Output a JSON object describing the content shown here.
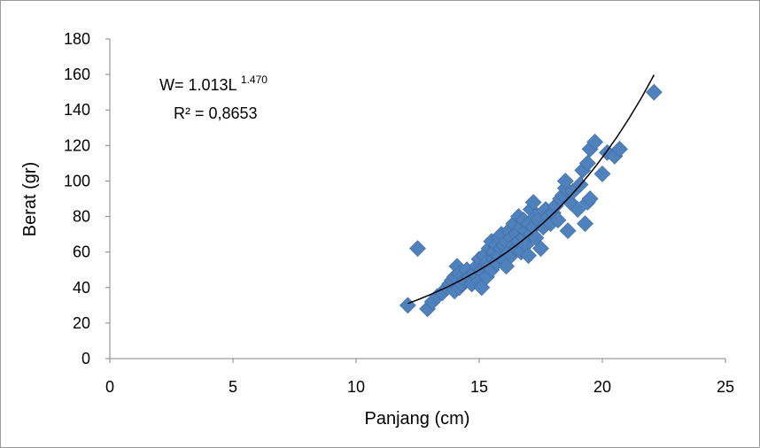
{
  "chart_data": {
    "type": "scatter",
    "title": "",
    "xlabel": "Panjang (cm)",
    "ylabel": "Berat (gr)",
    "xlim": [
      0,
      25
    ],
    "ylim": [
      0,
      180
    ],
    "x_ticks": [
      "0",
      "5",
      "10",
      "15",
      "20",
      "25"
    ],
    "y_ticks": [
      "0",
      "20",
      "40",
      "60",
      "80",
      "100",
      "120",
      "140",
      "160",
      "180"
    ],
    "grid": false,
    "legend": "none",
    "marker": "diamond",
    "marker_color": "#4f81bd",
    "trendline": {
      "type": "power",
      "a": 1.013,
      "b": 1.47,
      "x_range": [
        12.1,
        22.1
      ],
      "color": "#000000"
    },
    "annotations": {
      "equation_base": "W= 1.013L",
      "equation_exponent": "1.470",
      "r_squared": "R² = 0,8653"
    },
    "series": [
      {
        "x": [
          12.1,
          12.5,
          12.9,
          13.1,
          13.3,
          13.5,
          13.7,
          13.8,
          13.9,
          14.0,
          14.0,
          14.1,
          14.2,
          14.2,
          14.3,
          14.4,
          14.5,
          14.6,
          14.7,
          14.8,
          14.9,
          15.0,
          15.0,
          15.1,
          15.1,
          15.2,
          15.2,
          15.3,
          15.3,
          15.4,
          15.4,
          15.5,
          15.5,
          15.6,
          15.6,
          15.7,
          15.7,
          15.8,
          15.8,
          15.9,
          15.9,
          16.0,
          16.0,
          16.1,
          16.1,
          16.2,
          16.2,
          16.3,
          16.3,
          16.4,
          16.4,
          16.5,
          16.5,
          16.6,
          16.6,
          16.7,
          16.7,
          16.8,
          16.8,
          16.9,
          16.9,
          17.0,
          17.0,
          17.1,
          17.1,
          17.2,
          17.2,
          17.3,
          17.3,
          17.4,
          17.5,
          17.6,
          17.7,
          17.8,
          17.9,
          18.0,
          18.1,
          18.2,
          18.3,
          18.4,
          18.5,
          18.5,
          18.6,
          18.7,
          18.8,
          19.0,
          19.1,
          19.2,
          19.3,
          19.4,
          19.4,
          19.5,
          19.5,
          19.7,
          20.0,
          20.2,
          20.5,
          20.7,
          22.1
        ],
        "y": [
          30,
          62,
          28,
          32,
          35,
          37,
          40,
          42,
          44,
          38,
          46,
          52,
          40,
          48,
          42,
          44,
          50,
          46,
          42,
          48,
          52,
          44,
          56,
          40,
          50,
          48,
          58,
          46,
          54,
          52,
          62,
          50,
          66,
          56,
          60,
          54,
          64,
          58,
          68,
          62,
          70,
          56,
          64,
          52,
          66,
          60,
          72,
          58,
          68,
          64,
          76,
          62,
          70,
          66,
          80,
          60,
          74,
          68,
          78,
          64,
          72,
          58,
          76,
          70,
          84,
          74,
          88,
          68,
          80,
          78,
          62,
          74,
          84,
          80,
          76,
          82,
          86,
          78,
          90,
          92,
          96,
          100,
          72,
          88,
          94,
          84,
          98,
          106,
          76,
          88,
          110,
          90,
          118,
          122,
          104,
          116,
          114,
          118,
          150
        ]
      }
    ]
  }
}
